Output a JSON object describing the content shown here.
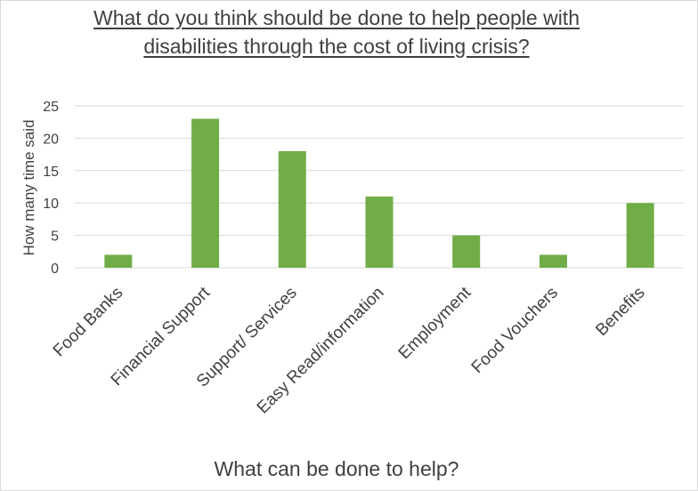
{
  "chart_data": {
    "type": "bar",
    "title_lines": [
      "What do you think should be done to help people with",
      "disabilities through the cost of living crisis?"
    ],
    "xlabel": "What can be done to help?",
    "ylabel": "How many time said",
    "categories": [
      "Food Banks",
      "Financial Support",
      "Support/ Services",
      "Easy Read/information",
      "Employment",
      "Food Vouchers",
      "Benefits"
    ],
    "values": [
      2,
      23,
      18,
      11,
      5,
      2,
      10
    ],
    "ylim": [
      0,
      25
    ],
    "yticks": [
      0,
      5,
      10,
      15,
      20,
      25
    ],
    "bar_color": "#70ad47",
    "grid_color": "#d9d9d9",
    "grid": true,
    "legend": "none"
  }
}
